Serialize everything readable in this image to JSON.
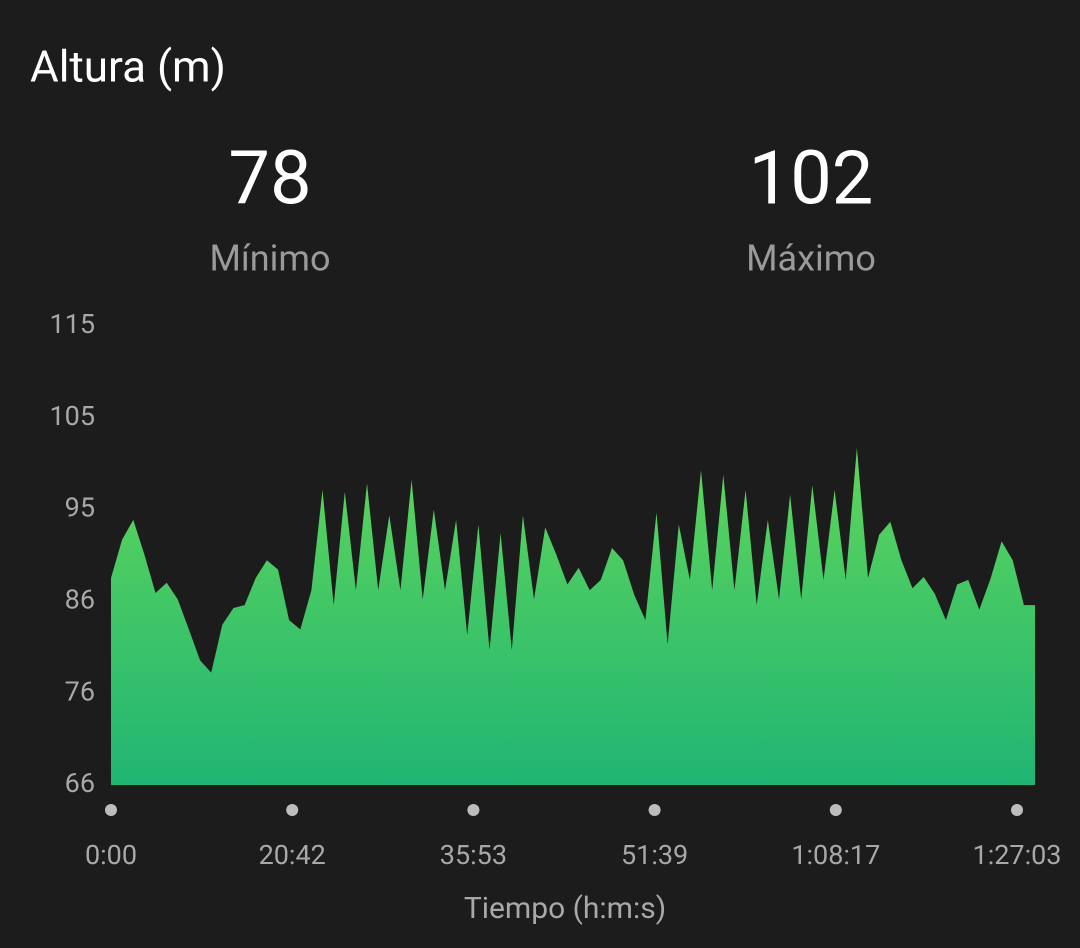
{
  "chart_data": {
    "type": "area",
    "title": "Altura (m)",
    "stats": [
      {
        "value": 78,
        "label": "Mínimo"
      },
      {
        "value": 102,
        "label": "Máximo"
      }
    ],
    "values": [
      88.1,
      92.2,
      94.3,
      90.6,
      86.5,
      87.6,
      85.8,
      82.6,
      79.3,
      78,
      83.1,
      84.9,
      85.2,
      88.1,
      90.0,
      89.0,
      83.6,
      82.6,
      86.8,
      97.5,
      85.2,
      97.3,
      86.8,
      98.2,
      86.8,
      94.8,
      86.8,
      98.6,
      85.8,
      95.4,
      86.8,
      94.3,
      82.0,
      93.8,
      80.4,
      92.9,
      80.4,
      94.8,
      85.8,
      93.5,
      90.6,
      87.4,
      89.2,
      86.8,
      87.9,
      91.3,
      90.0,
      86.3,
      83.6,
      95.1,
      81.0,
      93.8,
      87.9,
      99.6,
      86.8,
      99.1,
      86.8,
      97.5,
      85.2,
      94.3,
      85.8,
      97.0,
      85.8,
      98.0,
      87.9,
      97.5,
      87.9,
      102,
      88.1,
      92.7,
      94.1,
      90.0,
      87.0,
      88.2,
      86.4,
      83.6,
      87.4,
      87.9,
      84.7,
      88.0,
      92.0,
      90.0,
      85.2,
      85.2
    ],
    "color_top": "#5fd65a",
    "color_bottom": "#20b574",
    "ylim": [
      66,
      115
    ],
    "yticks": [
      66,
      {
        "value": 75.8,
        "label": "76"
      },
      {
        "value": 85.6,
        "label": "86"
      },
      {
        "value": 95.4,
        "label": "95"
      },
      {
        "value": 105.2,
        "label": "105"
      },
      115
    ],
    "xtick_labels": [
      "0:00",
      "20:42",
      "35:53",
      "51:39",
      "1:08:17",
      "1:27:03"
    ],
    "xlabel": "Tiempo (h:m:s)"
  }
}
